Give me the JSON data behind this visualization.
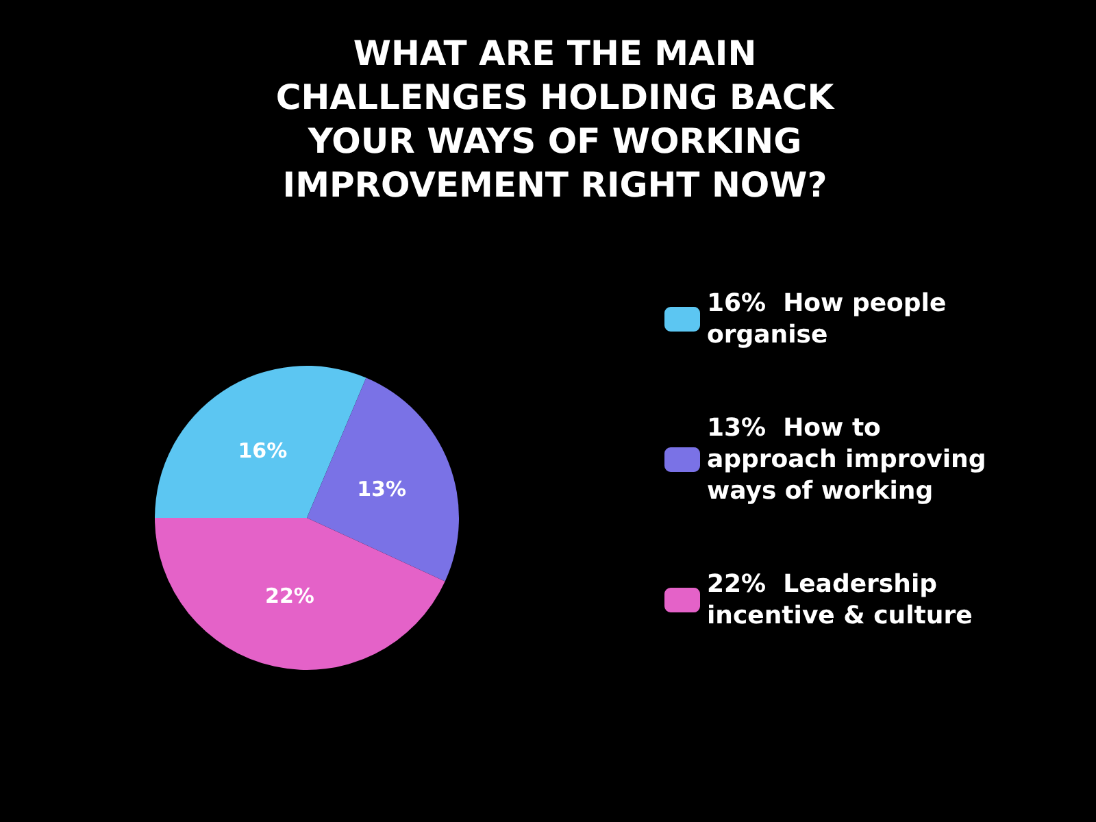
{
  "chart_data": {
    "type": "pie",
    "title": "WHAT ARE THE MAIN\nCHALLENGES HOLDING BACK\nYOUR WAYS OF WORKING\nIMPROVEMENT RIGHT NOW?",
    "categories": [
      "How people organise",
      "How to approach improving ways of working",
      "Leadership incentive & culture"
    ],
    "values": [
      16,
      13,
      22
    ],
    "value_labels": [
      "16%",
      "13%",
      "22%"
    ],
    "colors": [
      "#5cc6f2",
      "#7a72e6",
      "#e462c8"
    ],
    "legend": "right"
  }
}
